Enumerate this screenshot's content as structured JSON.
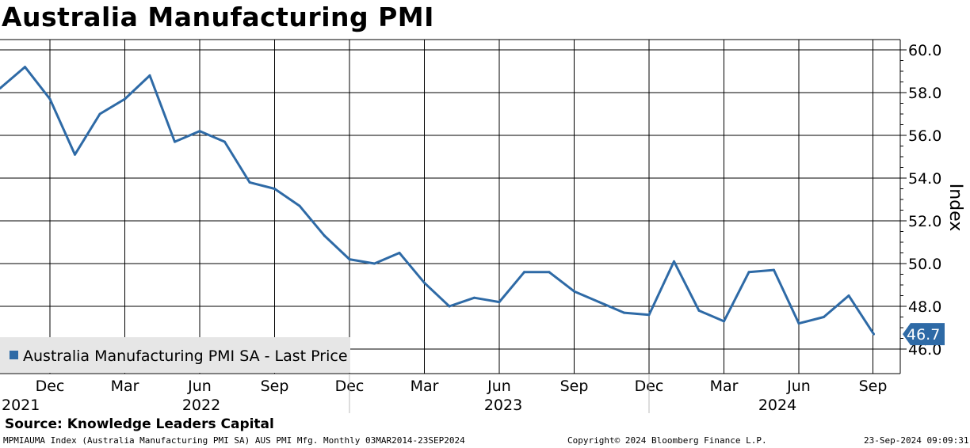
{
  "header": {
    "title": "Australia Manufacturing PMI"
  },
  "footer": {
    "source": "Source: Knowledge Leaders Capital",
    "ticker_info": "MPMIAUMA Index (Australia Manufacturing PMI SA) AUS PMI Mfg.  Monthly 03MAR2014-23SEP2024",
    "copyright": "Copyright© 2024 Bloomberg Finance L.P.",
    "timestamp": "23-Sep-2024 09:09:31"
  },
  "chart_data": {
    "type": "line",
    "ylabel": "Index",
    "ylim": [
      45.0,
      60.5
    ],
    "yticks": [
      "46.0",
      "48.0",
      "50.0",
      "52.0",
      "54.0",
      "56.0",
      "58.0",
      "60.0"
    ],
    "month_ticks": [
      "Dec",
      "Mar",
      "Jun",
      "Sep",
      "Dec",
      "Mar",
      "Jun",
      "Sep",
      "Dec",
      "Mar",
      "Jun",
      "Sep"
    ],
    "year_labels": [
      "2021",
      "2022",
      "2023",
      "2024"
    ],
    "grid": true,
    "legend": {
      "label": "Australia Manufacturing PMI SA - Last Price",
      "position": "bottom-left"
    },
    "last_value_label": "46.7",
    "series": [
      {
        "name": "Australia Manufacturing PMI SA - Last Price",
        "color": "#2e6aa6",
        "x": [
          "2021-10",
          "2021-11",
          "2021-12",
          "2022-01",
          "2022-02",
          "2022-03",
          "2022-04",
          "2022-05",
          "2022-06",
          "2022-07",
          "2022-08",
          "2022-09",
          "2022-10",
          "2022-11",
          "2022-12",
          "2023-01",
          "2023-02",
          "2023-03",
          "2023-04",
          "2023-05",
          "2023-06",
          "2023-07",
          "2023-08",
          "2023-09",
          "2023-10",
          "2023-11",
          "2023-12",
          "2024-01",
          "2024-02",
          "2024-03",
          "2024-04",
          "2024-05",
          "2024-06",
          "2024-07",
          "2024-08",
          "2024-09"
        ],
        "values": [
          58.2,
          59.2,
          57.7,
          55.1,
          57.0,
          57.7,
          58.8,
          55.7,
          56.2,
          55.7,
          53.8,
          53.5,
          52.7,
          51.3,
          50.2,
          50.0,
          50.5,
          49.1,
          48.0,
          48.4,
          48.2,
          49.6,
          49.6,
          48.7,
          48.2,
          47.7,
          47.6,
          50.1,
          47.8,
          47.3,
          49.6,
          49.7,
          47.2,
          47.5,
          48.5,
          46.7
        ]
      }
    ]
  },
  "colors": {
    "line": "#2e6aa6",
    "grid": "#000000",
    "legend_bg": "#e6e6e6"
  }
}
